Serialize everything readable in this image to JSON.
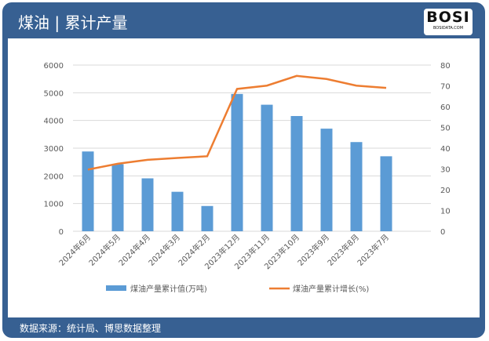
{
  "header": {
    "title": "煤油 | 累计产量",
    "logo_text": "BOSI",
    "logo_sub": "BOSIDATA.COM"
  },
  "footer": {
    "source": "数据来源：统计局、博思数据整理"
  },
  "colors": {
    "bar": "#5B9BD5",
    "line": "#ED7D31",
    "frame": "#376092"
  },
  "chart_data": {
    "type": "bar+line",
    "categories": [
      "2024年6月",
      "2024年5月",
      "2024年4月",
      "2024年3月",
      "2024年2月",
      "2023年12月",
      "2023年11月",
      "2023年10月",
      "2023年9月",
      "2023年8月",
      "2023年7月"
    ],
    "series": [
      {
        "name": "煤油产量累计值(万吨)",
        "type": "bar",
        "axis": "left",
        "values": [
          2880,
          2420,
          1910,
          1425,
          912,
          4957,
          4568,
          4160,
          3704,
          3220,
          2707
        ]
      },
      {
        "name": "煤油产量累计增长(%)",
        "type": "line",
        "axis": "right",
        "values": [
          29.7,
          32.5,
          34.4,
          35.3,
          36.1,
          68.5,
          70.1,
          74.8,
          73.3,
          70.1,
          69.0
        ]
      }
    ],
    "ylim": [
      0,
      6000
    ],
    "yticks": [
      0,
      1000,
      2000,
      3000,
      4000,
      5000,
      6000
    ],
    "y2lim": [
      0,
      80
    ],
    "y2ticks": [
      0,
      10,
      20,
      30,
      40,
      50,
      60,
      70,
      80
    ],
    "grid": true,
    "legend": "bottom"
  }
}
